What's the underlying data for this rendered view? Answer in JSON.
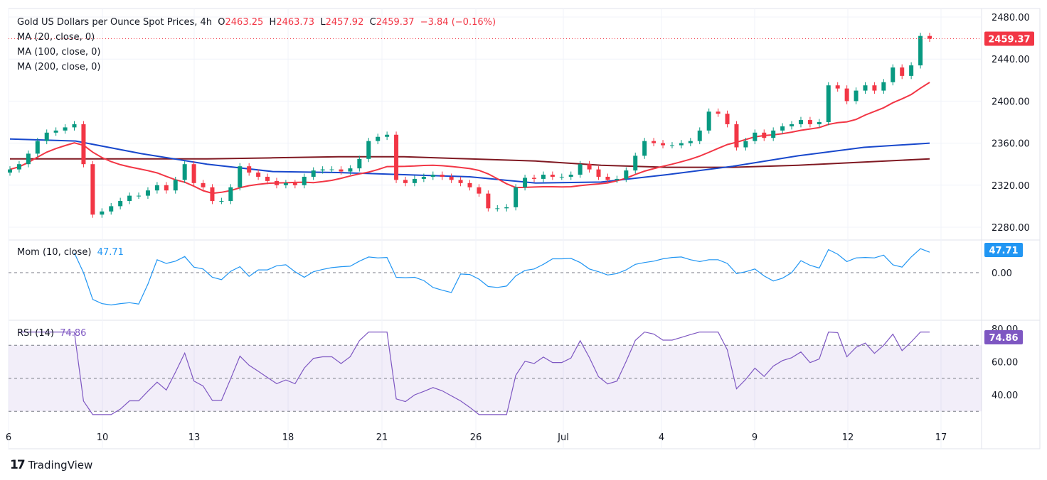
{
  "header": {
    "title": "Gold US Dollars per Ounce Spot Prices, 4h",
    "o_label": "O",
    "open": "2463.25",
    "h_label": "H",
    "high": "2463.73",
    "l_label": "L",
    "low": "2457.92",
    "c_label": "C",
    "close": "2459.37",
    "change": "−3.84 (−0.16%)"
  },
  "indicators": {
    "ma20": "MA (20, close, 0)",
    "ma100": "MA (100, close, 0)",
    "ma200": "MA (200, close, 0)",
    "mom": "Mom (10, close)",
    "mom_value": "47.71",
    "rsi": "RSI (14)",
    "rsi_value": "74.86"
  },
  "price_badge": "2459.37",
  "brand": "TradingView",
  "colors": {
    "up": "#089981",
    "down": "#f23645",
    "ma20": "#f23645",
    "ma100": "#1848cc",
    "ma200": "#801922",
    "mom": "#2196f3",
    "rsi": "#7e57c2"
  },
  "chart_data": {
    "type": "candlestick",
    "price_axis": {
      "ticks": [
        "2480.00",
        "2440.00",
        "2400.00",
        "2360.00",
        "2320.00",
        "2280.00"
      ],
      "ylim": [
        2270,
        2486
      ]
    },
    "mom_axis": {
      "ticks": [
        "0.00"
      ]
    },
    "rsi_axis": {
      "ticks": [
        "80.00",
        "60.00",
        "40.00"
      ],
      "bands": [
        30,
        70
      ]
    },
    "x_ticks": [
      "6",
      "10",
      "13",
      "18",
      "21",
      "26",
      "Jul",
      "4",
      "9",
      "12",
      "17"
    ],
    "closes": [
      2335,
      2340,
      2350,
      2362,
      2370,
      2372,
      2375,
      2378,
      2340,
      2292,
      2295,
      2300,
      2305,
      2310,
      2310,
      2315,
      2320,
      2315,
      2325,
      2340,
      2322,
      2318,
      2305,
      2305,
      2318,
      2338,
      2332,
      2328,
      2324,
      2320,
      2322,
      2320,
      2328,
      2334,
      2335,
      2335,
      2333,
      2336,
      2345,
      2362,
      2366,
      2368,
      2325,
      2322,
      2326,
      2328,
      2330,
      2328,
      2325,
      2322,
      2318,
      2312,
      2298,
      2298,
      2299,
      2318,
      2327,
      2326,
      2330,
      2328,
      2328,
      2330,
      2340,
      2335,
      2328,
      2325,
      2326,
      2334,
      2348,
      2362,
      2360,
      2358,
      2358,
      2360,
      2362,
      2372,
      2390,
      2388,
      2378,
      2356,
      2362,
      2370,
      2365,
      2372,
      2376,
      2378,
      2382,
      2378,
      2380,
      2415,
      2412,
      2400,
      2410,
      2415,
      2410,
      2418,
      2432,
      2424,
      2434,
      2462,
      2459.37
    ],
    "ma100": [
      2364,
      2362,
      2350,
      2340,
      2333,
      2332,
      2330,
      2328,
      2322,
      2323,
      2330,
      2338,
      2348,
      2356,
      2360
    ],
    "ma200": [
      2345,
      2345,
      2345,
      2345,
      2346,
      2347,
      2347,
      2345,
      2343,
      2339,
      2337,
      2337,
      2339,
      2342,
      2345
    ]
  }
}
